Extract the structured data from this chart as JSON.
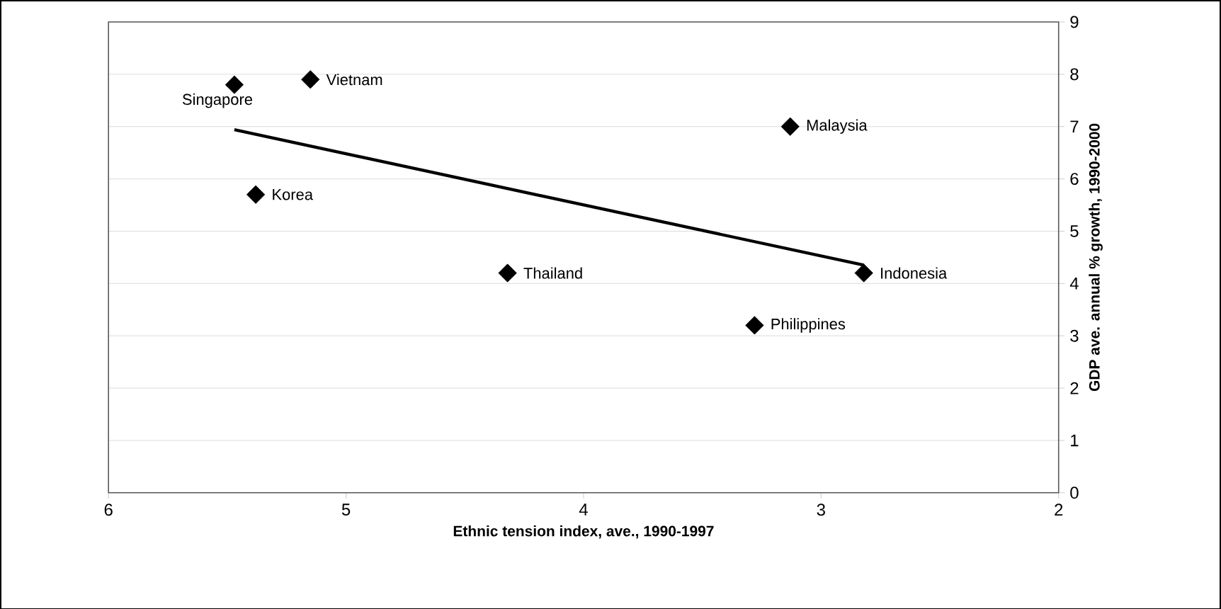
{
  "chart_data": {
    "type": "scatter",
    "xlabel": "Ethnic tension index, ave., 1990-1997",
    "ylabel": "GDP ave. annual % growth, 1990-2000",
    "series": [
      {
        "color": "#000000",
        "marker": "diamond",
        "x": [
          5.47,
          5.15,
          5.38,
          4.32,
          3.13,
          3.28,
          2.82
        ],
        "values": [
          7.8,
          7.9,
          5.7,
          4.2,
          7.0,
          3.2,
          4.2
        ]
      },
      {
        "type": "line",
        "color": "#000000",
        "marker": "none",
        "line_style": "solid",
        "x": [
          5.47,
          2.82
        ],
        "values": [
          6.94,
          4.35
        ]
      }
    ],
    "annotations": [
      {
        "text": "Singapore",
        "x": 5.47,
        "y": 7.8
      },
      {
        "text": "Vietnam",
        "x": 5.15,
        "y": 7.9
      },
      {
        "text": "Korea",
        "x": 5.38,
        "y": 5.7
      },
      {
        "text": "Thailand",
        "x": 4.32,
        "y": 4.2
      },
      {
        "text": "Malaysia",
        "x": 3.13,
        "y": 7.0
      },
      {
        "text": "Philippines",
        "x": 3.28,
        "y": 3.2
      },
      {
        "text": "Indonesia",
        "x": 2.82,
        "y": 4.2
      }
    ],
    "xlim": [
      6,
      2
    ],
    "ylim": [
      0,
      9
    ],
    "xticks": [
      6,
      5,
      4,
      3,
      2
    ],
    "yticks": [
      0,
      1,
      2,
      3,
      4,
      5,
      6,
      7,
      8,
      9
    ],
    "grid": "y"
  }
}
